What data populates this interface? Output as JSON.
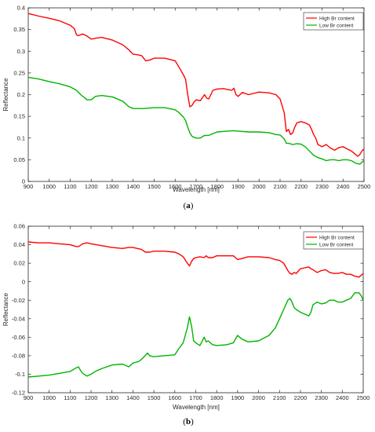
{
  "chart_data": [
    {
      "type": "line",
      "caption_letter": "a",
      "xlabel": "Wavelength [nm]",
      "ylabel": "Reflectance",
      "xlim": [
        900,
        2500
      ],
      "ylim": [
        0,
        0.4
      ],
      "xticks": [
        "900",
        "1000",
        "1100",
        "1200",
        "1300",
        "1400",
        "1500",
        "1600",
        "1700",
        "1800",
        "1900",
        "2000",
        "2100",
        "2200",
        "2300",
        "2400",
        "2500"
      ],
      "yticks": [
        "0",
        "0.05",
        "0.1",
        "0.15",
        "0.2",
        "0.25",
        "0.3",
        "0.35",
        "0.4"
      ],
      "grid": false,
      "legend_position": "top-right",
      "series": [
        {
          "name": "High Br content",
          "color": "#ff0000",
          "x": [
            900,
            950,
            1000,
            1050,
            1100,
            1120,
            1130,
            1140,
            1160,
            1180,
            1200,
            1220,
            1250,
            1300,
            1350,
            1380,
            1400,
            1420,
            1440,
            1460,
            1480,
            1500,
            1550,
            1600,
            1620,
            1640,
            1650,
            1660,
            1670,
            1680,
            1690,
            1700,
            1720,
            1740,
            1750,
            1760,
            1770,
            1780,
            1800,
            1830,
            1850,
            1870,
            1880,
            1890,
            1900,
            1920,
            1950,
            2000,
            2050,
            2080,
            2100,
            2120,
            2130,
            2140,
            2150,
            2160,
            2170,
            2180,
            2200,
            2220,
            2240,
            2250,
            2260,
            2270,
            2280,
            2300,
            2320,
            2340,
            2360,
            2380,
            2400,
            2420,
            2440,
            2460,
            2470,
            2480,
            2490,
            2500
          ],
          "values": [
            0.387,
            0.381,
            0.376,
            0.37,
            0.36,
            0.352,
            0.338,
            0.336,
            0.34,
            0.335,
            0.328,
            0.33,
            0.332,
            0.326,
            0.315,
            0.303,
            0.293,
            0.292,
            0.29,
            0.278,
            0.28,
            0.284,
            0.284,
            0.278,
            0.262,
            0.245,
            0.235,
            0.2,
            0.172,
            0.175,
            0.183,
            0.188,
            0.186,
            0.2,
            0.192,
            0.19,
            0.2,
            0.21,
            0.213,
            0.214,
            0.212,
            0.21,
            0.215,
            0.2,
            0.196,
            0.205,
            0.2,
            0.206,
            0.204,
            0.2,
            0.19,
            0.158,
            0.115,
            0.12,
            0.108,
            0.112,
            0.125,
            0.135,
            0.138,
            0.135,
            0.13,
            0.12,
            0.108,
            0.1,
            0.085,
            0.08,
            0.085,
            0.077,
            0.072,
            0.078,
            0.08,
            0.075,
            0.07,
            0.062,
            0.058,
            0.062,
            0.07,
            0.075
          ]
        },
        {
          "name": "Low Br content",
          "color": "#00b400",
          "x": [
            900,
            950,
            1000,
            1050,
            1100,
            1130,
            1150,
            1180,
            1200,
            1220,
            1250,
            1300,
            1350,
            1380,
            1400,
            1450,
            1500,
            1550,
            1600,
            1620,
            1640,
            1650,
            1660,
            1670,
            1680,
            1700,
            1720,
            1740,
            1760,
            1800,
            1850,
            1880,
            1900,
            1950,
            2000,
            2050,
            2080,
            2100,
            2120,
            2130,
            2140,
            2160,
            2180,
            2200,
            2220,
            2240,
            2260,
            2280,
            2300,
            2320,
            2340,
            2360,
            2380,
            2400,
            2420,
            2440,
            2460,
            2480,
            2500
          ],
          "values": [
            0.24,
            0.236,
            0.23,
            0.225,
            0.218,
            0.21,
            0.2,
            0.188,
            0.188,
            0.196,
            0.198,
            0.195,
            0.185,
            0.172,
            0.168,
            0.168,
            0.17,
            0.17,
            0.165,
            0.158,
            0.148,
            0.14,
            0.125,
            0.112,
            0.104,
            0.1,
            0.1,
            0.106,
            0.106,
            0.114,
            0.116,
            0.117,
            0.116,
            0.114,
            0.114,
            0.112,
            0.108,
            0.107,
            0.098,
            0.088,
            0.088,
            0.085,
            0.087,
            0.086,
            0.08,
            0.07,
            0.06,
            0.055,
            0.052,
            0.048,
            0.05,
            0.05,
            0.048,
            0.05,
            0.05,
            0.048,
            0.042,
            0.04,
            0.048
          ]
        }
      ]
    },
    {
      "type": "line",
      "caption_letter": "b",
      "xlabel": "Wavelength [nm]",
      "ylabel": "Reflectance",
      "xlim": [
        900,
        2500
      ],
      "ylim": [
        -0.12,
        0.06
      ],
      "xticks": [
        "900",
        "1000",
        "1100",
        "1200",
        "1300",
        "1400",
        "1500",
        "1600",
        "1700",
        "1800",
        "1900",
        "2000",
        "2100",
        "2200",
        "2300",
        "2400",
        "2500"
      ],
      "yticks": [
        "-0.12",
        "-0.1",
        "-0.08",
        "-0.06",
        "-0.04",
        "-0.02",
        "0",
        "0.02",
        "0.04",
        "0.06"
      ],
      "grid": false,
      "legend_position": "top-right",
      "series": [
        {
          "name": "High Br content",
          "color": "#ff0000",
          "x": [
            900,
            950,
            1000,
            1050,
            1100,
            1130,
            1140,
            1160,
            1180,
            1200,
            1250,
            1300,
            1350,
            1380,
            1400,
            1440,
            1460,
            1480,
            1500,
            1550,
            1600,
            1620,
            1640,
            1660,
            1670,
            1680,
            1690,
            1700,
            1720,
            1740,
            1750,
            1760,
            1780,
            1800,
            1850,
            1880,
            1900,
            1920,
            1950,
            2000,
            2050,
            2080,
            2100,
            2120,
            2140,
            2150,
            2160,
            2170,
            2180,
            2200,
            2220,
            2240,
            2250,
            2260,
            2280,
            2300,
            2320,
            2340,
            2360,
            2380,
            2400,
            2420,
            2440,
            2460,
            2480,
            2500
          ],
          "values": [
            0.043,
            0.042,
            0.042,
            0.041,
            0.04,
            0.038,
            0.038,
            0.041,
            0.042,
            0.041,
            0.039,
            0.037,
            0.036,
            0.037,
            0.037,
            0.035,
            0.032,
            0.032,
            0.033,
            0.033,
            0.032,
            0.03,
            0.027,
            0.02,
            0.017,
            0.022,
            0.025,
            0.026,
            0.027,
            0.026,
            0.028,
            0.026,
            0.026,
            0.028,
            0.028,
            0.028,
            0.024,
            0.025,
            0.027,
            0.027,
            0.026,
            0.024,
            0.023,
            0.02,
            0.012,
            0.009,
            0.008,
            0.01,
            0.009,
            0.014,
            0.015,
            0.016,
            0.014,
            0.013,
            0.01,
            0.012,
            0.013,
            0.01,
            0.009,
            0.009,
            0.01,
            0.008,
            0.008,
            0.006,
            0.005,
            0.009
          ]
        },
        {
          "name": "Low Br content",
          "color": "#00b400",
          "x": [
            900,
            950,
            1000,
            1050,
            1100,
            1130,
            1140,
            1150,
            1160,
            1180,
            1200,
            1220,
            1250,
            1300,
            1350,
            1380,
            1400,
            1430,
            1450,
            1470,
            1480,
            1500,
            1550,
            1600,
            1620,
            1640,
            1660,
            1670,
            1680,
            1690,
            1700,
            1720,
            1740,
            1750,
            1760,
            1780,
            1800,
            1850,
            1880,
            1900,
            1920,
            1950,
            2000,
            2050,
            2080,
            2100,
            2120,
            2140,
            2150,
            2160,
            2170,
            2180,
            2200,
            2220,
            2240,
            2250,
            2260,
            2280,
            2300,
            2320,
            2340,
            2360,
            2380,
            2400,
            2420,
            2440,
            2460,
            2480,
            2490,
            2500
          ],
          "values": [
            -0.103,
            -0.102,
            -0.101,
            -0.099,
            -0.097,
            -0.093,
            -0.092,
            -0.096,
            -0.099,
            -0.102,
            -0.1,
            -0.097,
            -0.094,
            -0.09,
            -0.089,
            -0.092,
            -0.088,
            -0.086,
            -0.082,
            -0.077,
            -0.08,
            -0.081,
            -0.08,
            -0.079,
            -0.072,
            -0.066,
            -0.05,
            -0.038,
            -0.048,
            -0.064,
            -0.066,
            -0.069,
            -0.06,
            -0.065,
            -0.064,
            -0.068,
            -0.069,
            -0.068,
            -0.066,
            -0.058,
            -0.062,
            -0.065,
            -0.064,
            -0.058,
            -0.05,
            -0.04,
            -0.03,
            -0.02,
            -0.018,
            -0.022,
            -0.028,
            -0.03,
            -0.033,
            -0.035,
            -0.037,
            -0.033,
            -0.025,
            -0.022,
            -0.024,
            -0.023,
            -0.02,
            -0.02,
            -0.022,
            -0.022,
            -0.02,
            -0.018,
            -0.012,
            -0.012,
            -0.015,
            -0.02
          ]
        }
      ]
    }
  ]
}
